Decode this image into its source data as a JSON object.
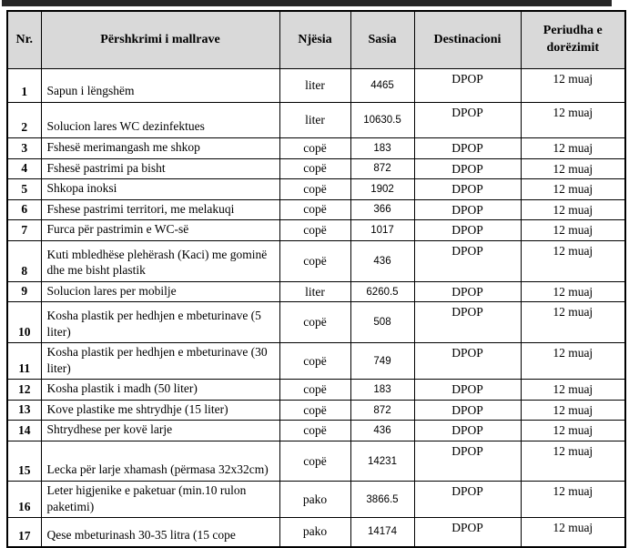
{
  "table": {
    "columns": [
      "Nr.",
      "Përshkrimi i mallrave",
      "Njësia",
      "Sasia",
      "Destinacioni",
      "Periudha e dorëzimit"
    ],
    "rows": [
      {
        "nr": "1",
        "description": "Sapun i lëngshëm",
        "unit": "liter",
        "quantity": "4465",
        "destination": "DPOP",
        "period": "12 muaj"
      },
      {
        "nr": "2",
        "description": "Solucion lares WC dezinfektues",
        "unit": "liter",
        "quantity": "10630.5",
        "destination": "DPOP",
        "period": "12 muaj"
      },
      {
        "nr": "3",
        "description": "Fshesë merimangash me shkop",
        "unit": "copë",
        "quantity": "183",
        "destination": "DPOP",
        "period": "12 muaj"
      },
      {
        "nr": "4",
        "description": "Fshesë pastrimi pa bisht",
        "unit": "copë",
        "quantity": "872",
        "destination": "DPOP",
        "period": "12 muaj"
      },
      {
        "nr": "5",
        "description": "Shkopa inoksi",
        "unit": "copë",
        "quantity": "1902",
        "destination": "DPOP",
        "period": "12 muaj"
      },
      {
        "nr": "6",
        "description": "Fshese pastrimi territori, me melakuqi",
        "unit": "copë",
        "quantity": "366",
        "destination": "DPOP",
        "period": "12 muaj"
      },
      {
        "nr": "7",
        "description": "Furca për pastrimin e WC-së",
        "unit": "copë",
        "quantity": "1017",
        "destination": "DPOP",
        "period": "12 muaj"
      },
      {
        "nr": "8",
        "description": "Kuti mbledhëse plehërash (Kaci) me gominë dhe me bisht plastik",
        "unit": "copë",
        "quantity": "436",
        "destination": "DPOP",
        "period": "12 muaj"
      },
      {
        "nr": "9",
        "description": "Solucion lares per mobilje",
        "unit": "liter",
        "quantity": "6260.5",
        "destination": "DPOP",
        "period": "12 muaj"
      },
      {
        "nr": "10",
        "description": "Kosha plastik per hedhjen e mbeturinave (5 liter)",
        "unit": "copë",
        "quantity": "508",
        "destination": "DPOP",
        "period": "12 muaj"
      },
      {
        "nr": "11",
        "description": "Kosha plastik per hedhjen e mbeturinave (30 liter)",
        "unit": "copë",
        "quantity": "749",
        "destination": "DPOP",
        "period": "12 muaj"
      },
      {
        "nr": "12",
        "description": "Kosha plastik i madh  (50 liter)",
        "unit": "copë",
        "quantity": "183",
        "destination": "DPOP",
        "period": "12 muaj"
      },
      {
        "nr": "13",
        "description": "Kove plastike me shtrydhje (15 liter)",
        "unit": "copë",
        "quantity": "872",
        "destination": "DPOP",
        "period": "12 muaj"
      },
      {
        "nr": "14",
        "description": "Shtrydhese per kovë larje",
        "unit": "copë",
        "quantity": "436",
        "destination": "DPOP",
        "period": "12 muaj"
      },
      {
        "nr": "15",
        "description": "Lecka për larje xhamash (përmasa 32x32cm)",
        "unit": "copë",
        "quantity": "14231",
        "destination": "DPOP",
        "period": "12 muaj"
      },
      {
        "nr": "16",
        "description": "Leter higjenike e paketuar  (min.10 rulon paketimi)",
        "unit": "pako",
        "quantity": "3866.5",
        "destination": "DPOP",
        "period": "12 muaj"
      },
      {
        "nr": "17",
        "description": "Qese mbeturinash 30-35 litra (15 cope",
        "unit": "pako",
        "quantity": "14174",
        "destination": "DPOP",
        "period": "12 muaj"
      }
    ]
  },
  "colors": {
    "header_bg": "#d9d9d9",
    "border": "#000000",
    "top_bar": "#262626"
  }
}
